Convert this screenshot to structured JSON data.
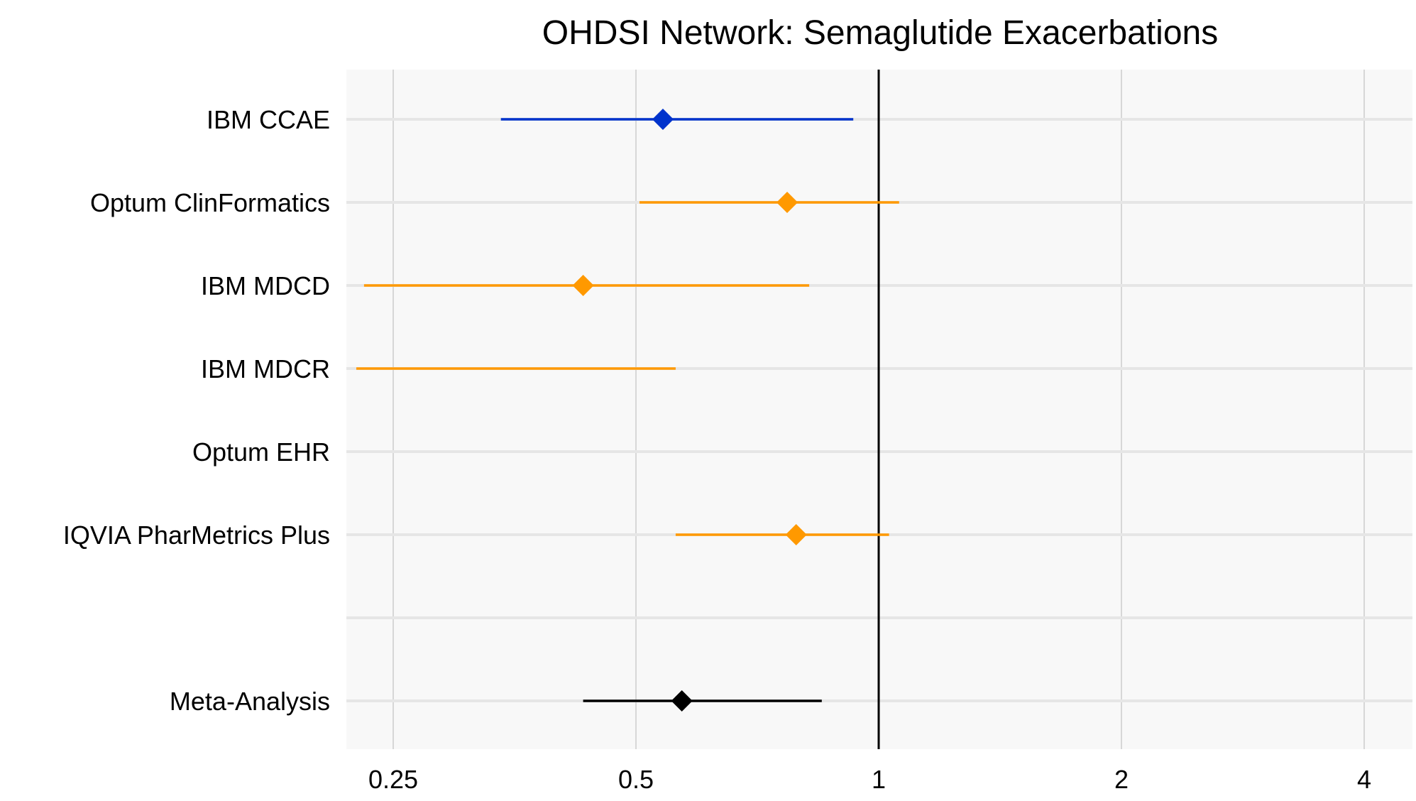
{
  "chart_data": {
    "type": "forest",
    "title": "OHDSI Network: Semaglutide Exacerbations",
    "xlabel": "",
    "ylabel": "",
    "x_scale": "log2",
    "xlim": [
      0.225,
      5.0
    ],
    "xticks": [
      0.25,
      0.5,
      1,
      2,
      4
    ],
    "xtick_labels": [
      "0.25",
      "0.5",
      "1",
      "2",
      "4"
    ],
    "reference_line": 1,
    "grid": true,
    "panel_background": "#f8f8f8",
    "rows": [
      {
        "label": "IBM CCAE",
        "estimate": 0.54,
        "lower": 0.34,
        "upper": 0.93,
        "color": "#0033cc"
      },
      {
        "label": "Optum ClinFormatics",
        "estimate": 0.77,
        "lower": 0.505,
        "upper": 1.06,
        "color": "#ff9900"
      },
      {
        "label": "IBM MDCD",
        "estimate": 0.43,
        "lower": 0.23,
        "upper": 0.82,
        "color": "#ff9900"
      },
      {
        "label": "IBM MDCR",
        "estimate": null,
        "lower": 0.225,
        "upper": 0.56,
        "color": "#ff9900"
      },
      {
        "label": "Optum EHR",
        "estimate": null,
        "lower": null,
        "upper": null,
        "color": "#ff9900"
      },
      {
        "label": "IQVIA PharMetrics Plus",
        "estimate": 0.79,
        "lower": 0.56,
        "upper": 1.03,
        "color": "#ff9900"
      },
      {
        "label": "",
        "estimate": null,
        "lower": null,
        "upper": null,
        "color": "#ff9900"
      },
      {
        "label": "Meta-Analysis",
        "estimate": 0.57,
        "lower": 0.43,
        "upper": 0.85,
        "color": "#000000"
      }
    ]
  }
}
